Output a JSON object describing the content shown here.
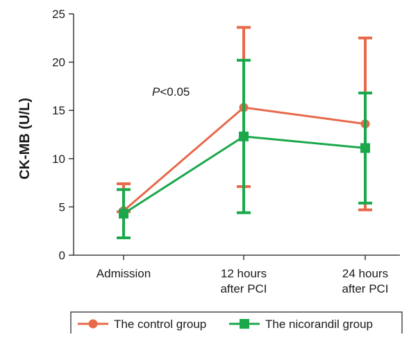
{
  "chart_data": {
    "type": "line",
    "title": "",
    "xlabel": "",
    "ylabel": "CK-MB (U/L)",
    "ylim": [
      0,
      25
    ],
    "yticks": [
      0,
      5,
      10,
      15,
      20,
      25
    ],
    "grid": false,
    "legend_position": "bottom",
    "categories": [
      [
        "Admission"
      ],
      [
        "12 hours",
        "after PCI"
      ],
      [
        "24 hours",
        "after PCI"
      ]
    ],
    "series": [
      {
        "name": "The control group",
        "color": "#e8684a",
        "marker": "circle",
        "values": [
          4.6,
          15.3,
          13.6
        ],
        "error_low": [
          4.5,
          7.1,
          4.7
        ],
        "error_high": [
          7.4,
          23.6,
          22.5
        ]
      },
      {
        "name": "The nicorandil group",
        "color": "#1aa84b",
        "marker": "square",
        "values": [
          4.3,
          12.3,
          11.1
        ],
        "error_low": [
          1.8,
          4.4,
          5.4
        ],
        "error_high": [
          6.8,
          20.2,
          16.8
        ]
      }
    ],
    "annotations": [
      {
        "text_italic": "P",
        "text": "<0.05"
      }
    ]
  }
}
